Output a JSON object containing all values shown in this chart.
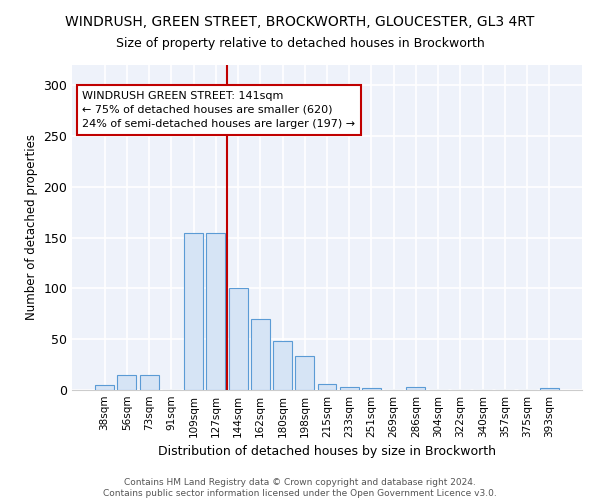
{
  "title": "WINDRUSH, GREEN STREET, BROCKWORTH, GLOUCESTER, GL3 4RT",
  "subtitle": "Size of property relative to detached houses in Brockworth",
  "xlabel": "Distribution of detached houses by size in Brockworth",
  "ylabel": "Number of detached properties",
  "categories": [
    "38sqm",
    "56sqm",
    "73sqm",
    "91sqm",
    "109sqm",
    "127sqm",
    "144sqm",
    "162sqm",
    "180sqm",
    "198sqm",
    "215sqm",
    "233sqm",
    "251sqm",
    "269sqm",
    "286sqm",
    "304sqm",
    "322sqm",
    "340sqm",
    "357sqm",
    "375sqm",
    "393sqm"
  ],
  "values": [
    5,
    15,
    15,
    0,
    155,
    155,
    100,
    70,
    48,
    33,
    6,
    3,
    2,
    0,
    3,
    0,
    0,
    0,
    0,
    0,
    2
  ],
  "bar_fill_color": "#d6e4f5",
  "bar_edge_color": "#5b9bd5",
  "highlight_color": "#c00000",
  "annotation_line1": "WINDRUSH GREEN STREET: 141sqm",
  "annotation_line2": "← 75% of detached houses are smaller (620)",
  "annotation_line3": "24% of semi-detached houses are larger (197) →",
  "footer_line1": "Contains HM Land Registry data © Crown copyright and database right 2024.",
  "footer_line2": "Contains public sector information licensed under the Open Government Licence v3.0.",
  "ylim": [
    0,
    320
  ],
  "yticks": [
    0,
    50,
    100,
    150,
    200,
    250,
    300
  ],
  "background_color": "#eef2fa",
  "title_fontsize": 10,
  "subtitle_fontsize": 9
}
